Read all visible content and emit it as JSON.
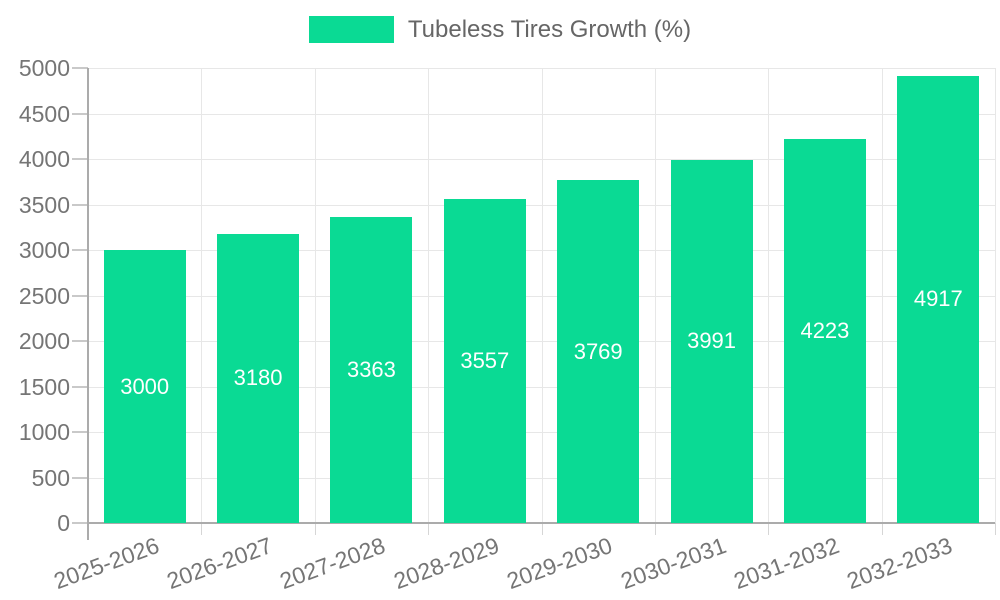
{
  "legend": {
    "label": "Tubeless Tires Growth (%)",
    "swatch_color": "#0ada94"
  },
  "chart_data": {
    "type": "bar",
    "title": "Tubeless Tires Growth (%)",
    "categories": [
      "2025-2026",
      "2026-2027",
      "2027-2028",
      "2028-2029",
      "2029-2030",
      "2030-2031",
      "2031-2032",
      "2032-2033"
    ],
    "values": [
      3000,
      3180,
      3363,
      3557,
      3769,
      3991,
      4223,
      4917
    ],
    "series": [
      {
        "name": "Tubeless Tires Growth (%)",
        "values": [
          3000,
          3180,
          3363,
          3557,
          3769,
          3991,
          4223,
          4917
        ]
      }
    ],
    "xlabel": "",
    "ylabel": "",
    "ylim": [
      0,
      5000
    ],
    "yticks": [
      0,
      500,
      1000,
      1500,
      2000,
      2500,
      3000,
      3500,
      4000,
      4500,
      5000
    ],
    "grid": true,
    "legend_position": "top-center",
    "x_label_rotation_deg": -20,
    "bar_color": "#0ada94",
    "value_label_color": "#ffffff",
    "axis_text_color": "#757575",
    "gridline_color": "#e7e7e7",
    "axis_line_color": "#ababab"
  }
}
